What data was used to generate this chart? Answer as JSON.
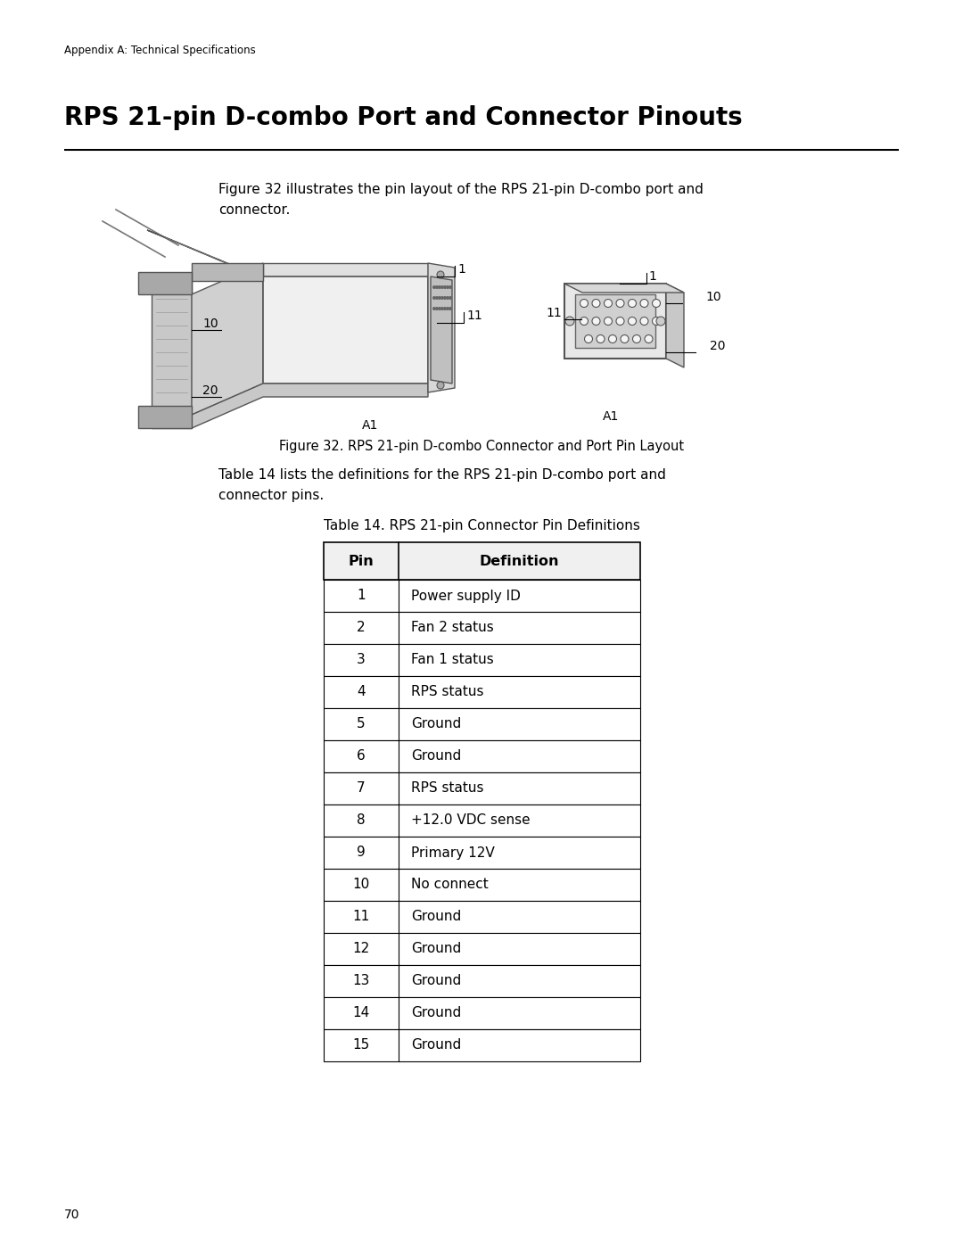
{
  "page_header": "Appendix A: Technical Specifications",
  "section_title": "RPS 21-pin D-combo Port and Connector Pinouts",
  "figure_intro_line1": "Figure 32 illustrates the pin layout of the RPS 21-pin D-combo port and",
  "figure_intro_line2": "connector.",
  "figure_caption": "Figure 32. RPS 21-pin D-combo Connector and Port Pin Layout",
  "table_intro_line1": "Table 14 lists the definitions for the RPS 21-pin D-combo port and",
  "table_intro_line2": "connector pins.",
  "table_title": "Table 14. RPS 21-pin Connector Pin Definitions",
  "col_headers": [
    "Pin",
    "Definition"
  ],
  "table_data": [
    [
      "1",
      "Power supply ID"
    ],
    [
      "2",
      "Fan 2 status"
    ],
    [
      "3",
      "Fan 1 status"
    ],
    [
      "4",
      "RPS status"
    ],
    [
      "5",
      "Ground"
    ],
    [
      "6",
      "Ground"
    ],
    [
      "7",
      "RPS status"
    ],
    [
      "8",
      "+12.0 VDC sense"
    ],
    [
      "9",
      "Primary 12V"
    ],
    [
      "10",
      "No connect"
    ],
    [
      "11",
      "Ground"
    ],
    [
      "12",
      "Ground"
    ],
    [
      "13",
      "Ground"
    ],
    [
      "14",
      "Ground"
    ],
    [
      "15",
      "Ground"
    ]
  ],
  "page_number": "70",
  "bg_color": "#ffffff",
  "text_color": "#000000"
}
